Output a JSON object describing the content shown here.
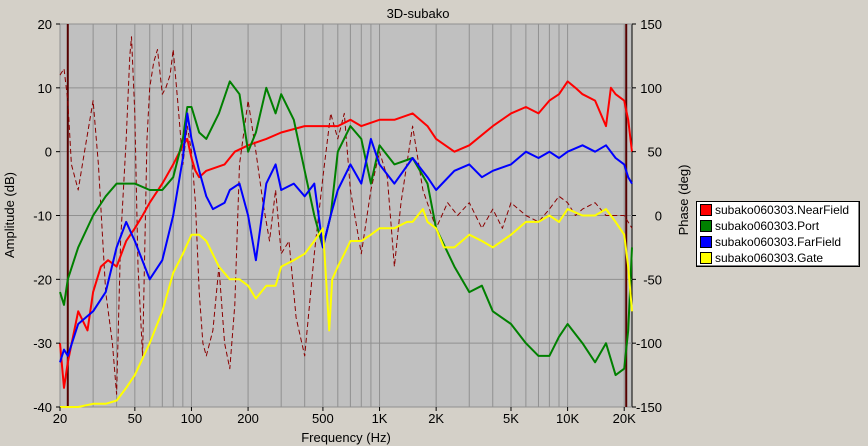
{
  "chart_data": {
    "type": "line",
    "title": "3D-subako",
    "xlabel": "Frequency (Hz)",
    "ylabel": "Amplitude (dB)",
    "y2label": "Phase (deg)",
    "x_scale": "log",
    "xlim": [
      20,
      22000
    ],
    "ylim": [
      -40,
      20
    ],
    "y2lim": [
      -150,
      150
    ],
    "x_ticks": [
      {
        "v": 20,
        "label": "20"
      },
      {
        "v": 50,
        "label": "50"
      },
      {
        "v": 100,
        "label": "100"
      },
      {
        "v": 200,
        "label": "200"
      },
      {
        "v": 500,
        "label": "500"
      },
      {
        "v": 1000,
        "label": "1K"
      },
      {
        "v": 2000,
        "label": "2K"
      },
      {
        "v": 5000,
        "label": "5K"
      },
      {
        "v": 10000,
        "label": "10K"
      },
      {
        "v": 20000,
        "label": "20K"
      }
    ],
    "y_ticks": [
      20,
      10,
      0,
      -10,
      -20,
      -30,
      -40
    ],
    "y2_ticks": [
      150,
      100,
      50,
      0,
      -50,
      -100,
      -150
    ],
    "grid": true,
    "legend_position": "right",
    "colors": {
      "plot_bg": "#c0c0c0",
      "grid": "#909090",
      "window_bg": "#d4d0c8",
      "phase": "#8b0000"
    },
    "series": [
      {
        "name": "subako060303.NearField",
        "color": "#ff0000",
        "x": [
          20,
          21,
          22,
          25,
          28,
          30,
          33,
          36,
          40,
          45,
          50,
          55,
          60,
          70,
          80,
          90,
          95,
          100,
          105,
          110,
          120,
          150,
          170,
          200,
          250,
          300,
          400,
          500,
          600,
          700,
          800,
          1000,
          1200,
          1500,
          1800,
          2000,
          2500,
          3000,
          4000,
          5000,
          6000,
          7000,
          8000,
          9000,
          10000,
          11000,
          12000,
          14000,
          16000,
          17000,
          18000,
          20000,
          21000,
          22000
        ],
        "y": [
          -30,
          -37,
          -33,
          -25,
          -28,
          -22,
          -18,
          -17,
          -18,
          -14,
          -12,
          -10,
          -8,
          -5,
          -2,
          1,
          2,
          -1,
          -3,
          -4,
          -3,
          -2,
          0,
          1,
          2,
          3,
          4,
          4,
          4,
          5,
          4,
          5,
          5,
          6,
          4,
          2,
          0,
          1,
          4,
          6,
          7,
          6,
          8,
          9,
          11,
          10,
          9,
          8,
          4,
          10,
          9,
          8,
          5,
          0
        ]
      },
      {
        "name": "subako060303.Port",
        "color": "#008000",
        "x": [
          20,
          21,
          22,
          25,
          30,
          35,
          40,
          45,
          50,
          60,
          70,
          80,
          90,
          95,
          100,
          110,
          120,
          140,
          160,
          180,
          200,
          220,
          250,
          280,
          300,
          350,
          400,
          450,
          500,
          550,
          600,
          700,
          800,
          900,
          1000,
          1200,
          1500,
          1800,
          2000,
          2500,
          3000,
          3500,
          4000,
          5000,
          6000,
          7000,
          8000,
          9000,
          10000,
          12000,
          14000,
          16000,
          18000,
          20000,
          21000,
          22000
        ],
        "y": [
          -22,
          -24,
          -20,
          -15,
          -10,
          -7,
          -5,
          -5,
          -5,
          -6,
          -6,
          -4,
          2,
          7,
          7,
          3,
          2,
          6,
          11,
          9,
          0,
          3,
          10,
          6,
          9,
          5,
          -3,
          -10,
          -15,
          -10,
          0,
          4,
          2,
          -5,
          1,
          -2,
          -1,
          -5,
          -12,
          -18,
          -22,
          -21,
          -25,
          -27,
          -30,
          -32,
          -32,
          -29,
          -27,
          -30,
          -33,
          -30,
          -35,
          -34,
          -28,
          -15
        ]
      },
      {
        "name": "subako060303.FarField",
        "color": "#0000ff",
        "x": [
          20,
          21,
          22,
          25,
          30,
          35,
          40,
          45,
          50,
          60,
          70,
          80,
          90,
          95,
          100,
          110,
          120,
          130,
          150,
          160,
          180,
          200,
          220,
          250,
          280,
          300,
          350,
          400,
          450,
          500,
          550,
          600,
          700,
          800,
          900,
          1000,
          1200,
          1500,
          1800,
          2000,
          2500,
          3000,
          3500,
          4000,
          5000,
          6000,
          7000,
          8000,
          9000,
          10000,
          12000,
          14000,
          16000,
          18000,
          20000,
          21000,
          22000
        ],
        "y": [
          -33,
          -31,
          -32,
          -27,
          -25,
          -22,
          -15,
          -11,
          -14,
          -20,
          -17,
          -10,
          -1,
          6,
          2,
          -3,
          -7,
          -9,
          -8,
          -6,
          -5,
          -10,
          -17,
          -5,
          -2,
          -6,
          -5,
          -7,
          -5,
          -15,
          -10,
          -6,
          -2,
          -5,
          2,
          -2,
          -5,
          -1,
          -4,
          -6,
          -3,
          -2,
          -4,
          -3,
          -2,
          0,
          -1,
          0,
          -1,
          0,
          1,
          0,
          1,
          -1,
          -2,
          -4,
          -5
        ]
      },
      {
        "name": "subako060303.Gate",
        "color": "#ffff00",
        "x": [
          20,
          25,
          30,
          35,
          40,
          45,
          50,
          60,
          70,
          80,
          90,
          100,
          110,
          120,
          140,
          160,
          180,
          200,
          220,
          250,
          280,
          300,
          350,
          400,
          450,
          500,
          520,
          540,
          560,
          600,
          650,
          700,
          800,
          900,
          1000,
          1200,
          1400,
          1500,
          1700,
          1800,
          2000,
          2200,
          2500,
          3000,
          3500,
          4000,
          5000,
          6000,
          7000,
          8000,
          9000,
          10000,
          12000,
          14000,
          16000,
          18000,
          20000,
          21000,
          22000
        ],
        "y": [
          -40,
          -40,
          -39.5,
          -39.5,
          -39,
          -37,
          -35,
          -30,
          -25,
          -19,
          -16,
          -13,
          -13,
          -14,
          -18,
          -20,
          -20,
          -21,
          -23,
          -21,
          -21,
          -18,
          -17,
          -16,
          -14,
          -12,
          -20,
          -28,
          -20,
          -18,
          -16,
          -14,
          -14,
          -13,
          -12,
          -12,
          -11,
          -11,
          -9,
          -11,
          -12,
          -15,
          -15,
          -13,
          -14,
          -15,
          -13,
          -11,
          -11,
          -10,
          -11,
          -9,
          -10,
          -10,
          -9,
          -11,
          -13,
          -18,
          -25
        ]
      },
      {
        "name": "phase",
        "color": "#8b0000",
        "axis": "phase",
        "dashed": true,
        "x": [
          20,
          21,
          22,
          23,
          25,
          27,
          30,
          32,
          35,
          38,
          40,
          42,
          45,
          47,
          48,
          50,
          52,
          55,
          58,
          60,
          63,
          66,
          70,
          73,
          77,
          80,
          85,
          90,
          95,
          100,
          105,
          110,
          115,
          120,
          130,
          140,
          150,
          160,
          170,
          180,
          200,
          220,
          240,
          260,
          280,
          300,
          330,
          360,
          400,
          450,
          500,
          550,
          600,
          650,
          700,
          800,
          900,
          1000,
          1100,
          1200,
          1300,
          1500,
          1700,
          2000,
          2300,
          2600,
          3000,
          3500,
          4000,
          4500,
          5000,
          6000,
          7000,
          8000,
          9000,
          10000,
          11000,
          12000,
          14000,
          16000,
          18000,
          20000,
          22000
        ],
        "y": [
          110,
          115,
          90,
          40,
          20,
          50,
          90,
          40,
          -60,
          -100,
          -140,
          -20,
          60,
          125,
          140,
          80,
          -40,
          -110,
          60,
          100,
          120,
          130,
          95,
          100,
          110,
          130,
          85,
          40,
          70,
          50,
          10,
          -60,
          -100,
          -110,
          -90,
          -40,
          -100,
          -120,
          -70,
          40,
          90,
          50,
          10,
          -20,
          20,
          -30,
          -20,
          -80,
          -110,
          -30,
          30,
          80,
          60,
          80,
          20,
          -30,
          20,
          50,
          30,
          -40,
          10,
          70,
          20,
          -10,
          10,
          0,
          10,
          -10,
          5,
          -10,
          10,
          0,
          -5,
          5,
          15,
          10,
          0,
          5,
          10,
          0,
          0,
          0,
          -10
        ]
      }
    ],
    "legend_entries": [
      {
        "label": "subako060303.NearField",
        "color": "#ff0000"
      },
      {
        "label": "subako060303.Port",
        "color": "#008000"
      },
      {
        "label": "subako060303.FarField",
        "color": "#0000ff"
      },
      {
        "label": "subako060303.Gate",
        "color": "#ffff00"
      }
    ]
  }
}
